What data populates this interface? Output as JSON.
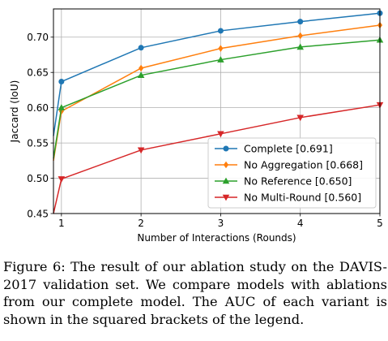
{
  "chart_data": {
    "type": "line",
    "xlabel": "Number of Interactions (Rounds)",
    "ylabel": "Jaccard (IoU)",
    "xlim": [
      0.9,
      5.0
    ],
    "ylim": [
      0.45,
      0.74
    ],
    "xticks": [
      "1",
      "2",
      "3",
      "4",
      "5"
    ],
    "yticks": [
      "0.45",
      "0.50",
      "0.55",
      "0.60",
      "0.65",
      "0.70"
    ],
    "grid": true,
    "legend_position": "lower-right",
    "series": [
      {
        "name": "Complete [0.691]",
        "color": "#1f77b4",
        "marker": "circle",
        "x": [
          0.9,
          1,
          2,
          3,
          4,
          5
        ],
        "y": [
          0.56,
          0.637,
          0.685,
          0.709,
          0.722,
          0.734
        ]
      },
      {
        "name": "No Aggregation [0.668]",
        "color": "#ff7f0e",
        "marker": "diamond",
        "x": [
          0.9,
          1,
          2,
          3,
          4,
          5
        ],
        "y": [
          0.525,
          0.595,
          0.656,
          0.684,
          0.702,
          0.717
        ]
      },
      {
        "name": "No Reference [0.650]",
        "color": "#2ca02c",
        "marker": "triangle-up",
        "x": [
          0.9,
          1,
          2,
          3,
          4,
          5
        ],
        "y": [
          0.528,
          0.6,
          0.646,
          0.668,
          0.686,
          0.696
        ]
      },
      {
        "name": "No Multi-Round [0.560]",
        "color": "#d62728",
        "marker": "triangle-down",
        "x": [
          0.9,
          1,
          2,
          3,
          4,
          5
        ],
        "y": [
          0.45,
          0.499,
          0.54,
          0.563,
          0.586,
          0.604
        ]
      }
    ]
  },
  "caption": {
    "lines": [
      "Figure 6: The result of our ablation study on the DAVIS-",
      "2017 validation set.  We compare models with ablations",
      "from our complete model.  The AUC of each variant is",
      "shown in the squared brackets of the legend."
    ]
  }
}
